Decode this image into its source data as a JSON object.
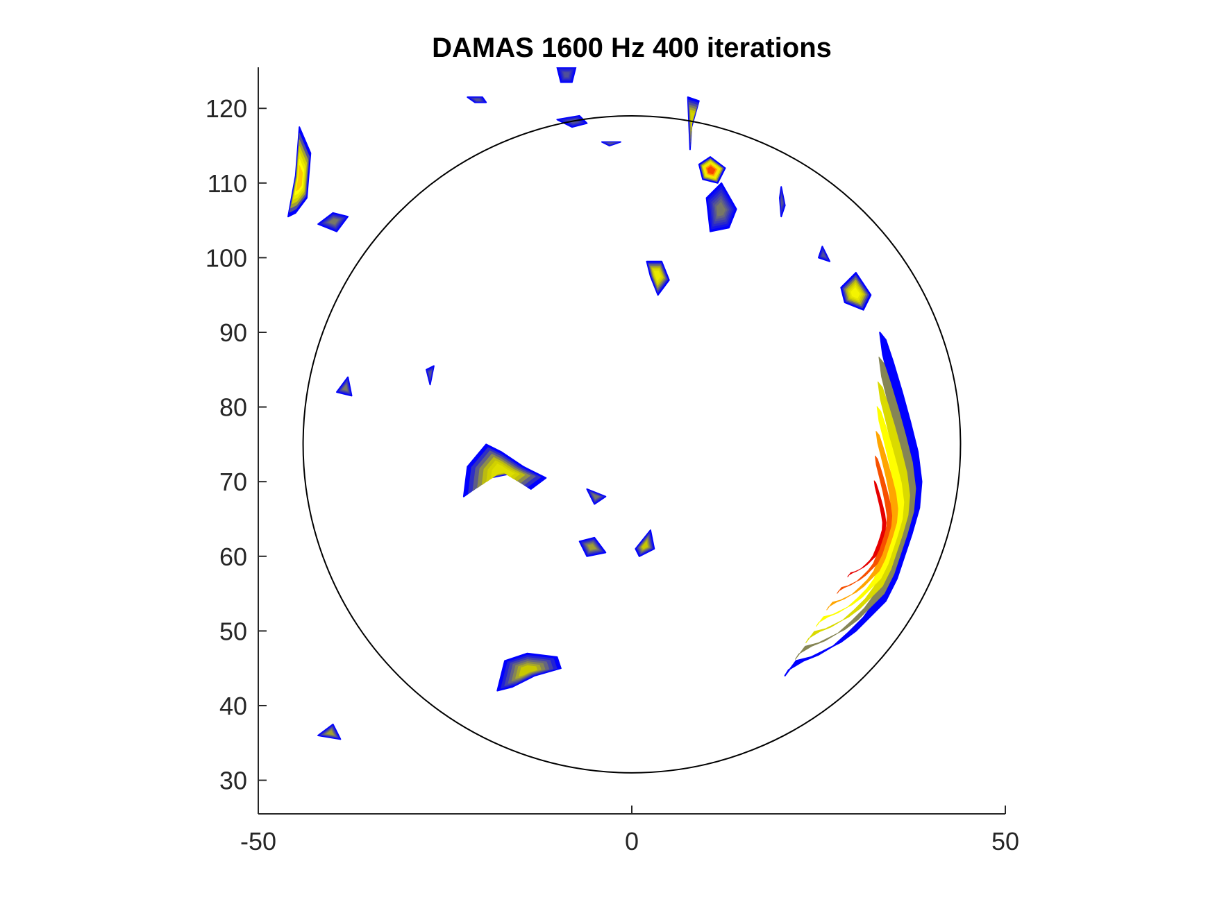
{
  "chart_data": {
    "type": "contour",
    "title": "DAMAS 1600 Hz 400 iterations",
    "xlabel": "",
    "ylabel": "",
    "xlim": [
      -50,
      50
    ],
    "ylim": [
      25.5,
      125.5
    ],
    "xticks": [
      -50,
      0,
      50
    ],
    "yticks": [
      30,
      40,
      50,
      60,
      70,
      80,
      90,
      100,
      110,
      120
    ],
    "grid": false,
    "colormap": [
      "#0000ff",
      "#c8c800",
      "#ffff00",
      "#ff7800",
      "#e60000"
    ],
    "reference_circle": {
      "center": [
        0,
        75
      ],
      "radius": 44
    },
    "blobs": [
      {
        "name": "arc-source",
        "level": 1.0,
        "pts": [
          [
            20.5,
            44
          ],
          [
            22,
            46
          ],
          [
            24,
            46.5
          ],
          [
            26,
            47.5
          ],
          [
            28,
            48.5
          ],
          [
            30,
            50
          ],
          [
            32,
            52
          ],
          [
            34,
            54
          ],
          [
            35.5,
            57
          ],
          [
            36.5,
            60
          ],
          [
            37.5,
            63
          ],
          [
            38.5,
            66.5
          ],
          [
            38.8,
            70
          ],
          [
            38.3,
            74
          ],
          [
            37.3,
            78
          ],
          [
            36.2,
            82
          ],
          [
            35,
            86
          ],
          [
            34,
            89
          ],
          [
            33.2,
            90
          ],
          [
            33.6,
            87
          ],
          [
            34.6,
            83
          ],
          [
            35.8,
            78
          ],
          [
            36.6,
            74
          ],
          [
            37.2,
            70
          ],
          [
            37,
            66.5
          ],
          [
            36,
            63
          ],
          [
            35,
            60
          ],
          [
            33.8,
            57
          ],
          [
            32.6,
            54
          ],
          [
            31,
            51.8
          ],
          [
            29,
            49.8
          ],
          [
            27,
            48
          ],
          [
            25,
            46.8
          ],
          [
            23,
            46
          ],
          [
            21,
            44.8
          ]
        ]
      },
      {
        "name": "top-right-source",
        "level": 0.85,
        "pts": [
          [
            9,
            112.5
          ],
          [
            10.5,
            113.5
          ],
          [
            12.5,
            112
          ],
          [
            11.5,
            110
          ],
          [
            9.5,
            110.5
          ]
        ]
      },
      {
        "name": "top-right-lower",
        "level": 0.15,
        "pts": [
          [
            10,
            108
          ],
          [
            12,
            110
          ],
          [
            14,
            106.5
          ],
          [
            13,
            104
          ],
          [
            10.5,
            103.5
          ]
        ]
      },
      {
        "name": "right-upper",
        "level": 0.45,
        "pts": [
          [
            28,
            96
          ],
          [
            30,
            98
          ],
          [
            32,
            95
          ],
          [
            31,
            93
          ],
          [
            28.5,
            94
          ]
        ]
      },
      {
        "name": "center-mid",
        "level": 0.4,
        "pts": [
          [
            2,
            99.5
          ],
          [
            4,
            99.5
          ],
          [
            5,
            97
          ],
          [
            3.5,
            95
          ],
          [
            2.5,
            97.5
          ]
        ]
      },
      {
        "name": "left-cluster",
        "level": 0.35,
        "pts": [
          [
            -22,
            72
          ],
          [
            -19.5,
            75
          ],
          [
            -17.5,
            74
          ],
          [
            -14.5,
            72
          ],
          [
            -11.5,
            70.5
          ],
          [
            -13.5,
            69
          ],
          [
            -16.5,
            71
          ],
          [
            -19,
            70.5
          ],
          [
            -22.5,
            68
          ]
        ]
      },
      {
        "name": "lower-left-blob",
        "level": 0.25,
        "pts": [
          [
            -18,
            42
          ],
          [
            -17,
            46
          ],
          [
            -14,
            47
          ],
          [
            -10,
            46.5
          ],
          [
            -9.5,
            45
          ],
          [
            -13,
            44
          ],
          [
            -16,
            42.5
          ]
        ]
      },
      {
        "name": "small-center-1",
        "level": 0.2,
        "pts": [
          [
            -7,
            62
          ],
          [
            -5,
            62.5
          ],
          [
            -3.5,
            60.5
          ],
          [
            -6,
            60
          ]
        ]
      },
      {
        "name": "small-center-2",
        "level": 0.25,
        "pts": [
          [
            0.5,
            61
          ],
          [
            2.5,
            63.5
          ],
          [
            3,
            61
          ],
          [
            1,
            60
          ]
        ]
      },
      {
        "name": "small-center-3",
        "level": 0.15,
        "pts": [
          [
            -6,
            69
          ],
          [
            -3.5,
            68
          ],
          [
            -5,
            67
          ]
        ]
      },
      {
        "name": "upper-left-stack",
        "level": 0.6,
        "pts": [
          [
            -46,
            105.5
          ],
          [
            -45,
            111
          ],
          [
            -44.5,
            117.5
          ],
          [
            -43,
            114
          ],
          [
            -43.5,
            108
          ],
          [
            -45,
            106
          ]
        ]
      },
      {
        "name": "upper-left-2",
        "level": 0.15,
        "pts": [
          [
            -42,
            104.5
          ],
          [
            -40,
            106
          ],
          [
            -38,
            105.5
          ],
          [
            -39.5,
            103.5
          ]
        ]
      },
      {
        "name": "left-side",
        "level": 0.15,
        "pts": [
          [
            -39.5,
            82
          ],
          [
            -38,
            84
          ],
          [
            -37.5,
            81.5
          ]
        ]
      },
      {
        "name": "mid-upper-small",
        "level": 0.1,
        "pts": [
          [
            -27.5,
            85
          ],
          [
            -26.5,
            85.5
          ],
          [
            -27,
            83
          ]
        ]
      },
      {
        "name": "top-mid",
        "level": 0.1,
        "pts": [
          [
            -10,
            118.5
          ],
          [
            -7,
            119
          ],
          [
            -6,
            118
          ],
          [
            -8,
            117.5
          ]
        ]
      },
      {
        "name": "top-mid-2",
        "level": 0.1,
        "pts": [
          [
            -4,
            115.5
          ],
          [
            -1.5,
            115.5
          ],
          [
            -3,
            115
          ]
        ]
      },
      {
        "name": "top-vert",
        "level": 0.3,
        "pts": [
          [
            7.5,
            121.5
          ],
          [
            9,
            121
          ],
          [
            8,
            117.5
          ],
          [
            7.8,
            114.5
          ]
        ]
      },
      {
        "name": "top-right-line",
        "level": 0.1,
        "pts": [
          [
            20,
            109.5
          ],
          [
            20.5,
            107
          ],
          [
            20,
            105.5
          ],
          [
            19.8,
            108
          ]
        ]
      },
      {
        "name": "right-small",
        "level": 0.1,
        "pts": [
          [
            25.5,
            101.5
          ],
          [
            26.5,
            99.5
          ],
          [
            25,
            100
          ]
        ]
      },
      {
        "name": "lower-left-small",
        "level": 0.2,
        "pts": [
          [
            -42,
            36
          ],
          [
            -40,
            37.5
          ],
          [
            -39,
            35.5
          ]
        ]
      },
      {
        "name": "upper-left-top",
        "level": 0.1,
        "pts": [
          [
            -22,
            121.5
          ],
          [
            -20,
            121.5
          ],
          [
            -19.5,
            120.8
          ],
          [
            -21,
            120.8
          ]
        ]
      },
      {
        "name": "top-edge",
        "level": 0.1,
        "pts": [
          [
            -10,
            125.5
          ],
          [
            -7.5,
            125.5
          ],
          [
            -8,
            123.5
          ],
          [
            -9.5,
            123.5
          ]
        ]
      }
    ]
  }
}
